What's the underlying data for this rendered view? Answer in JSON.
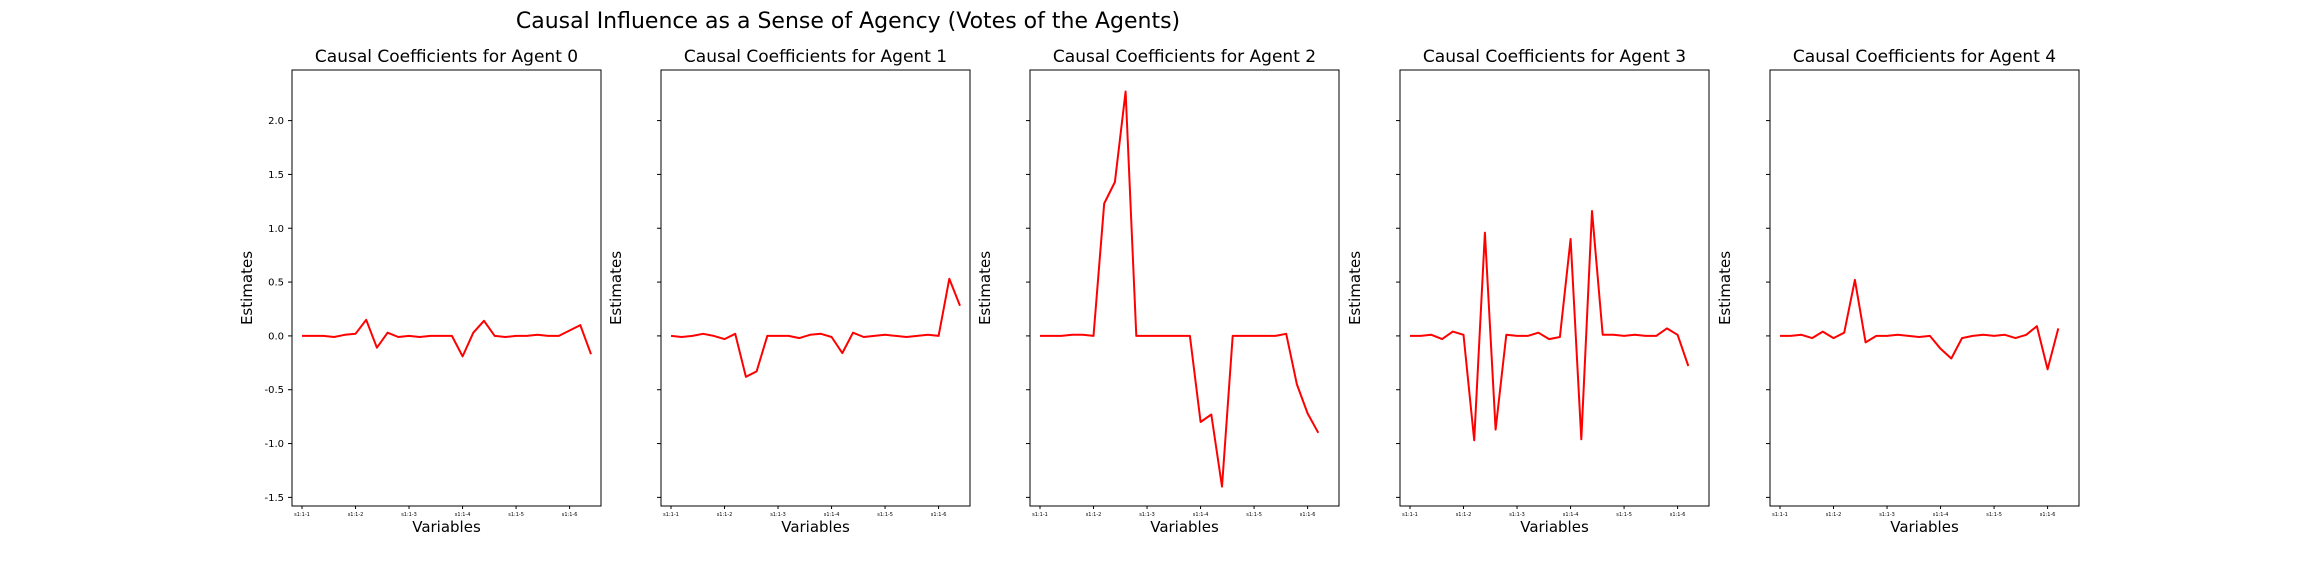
{
  "figure": {
    "title": "Causal Influence as a Sense of Agency (Votes of the Agents)"
  },
  "colors": {
    "line": "#ff0000",
    "axes": "#000000"
  },
  "chart_data": [
    {
      "type": "line",
      "title": "Causal Coefficients for Agent 0",
      "xlabel": "Variables",
      "ylabel": "Estimates",
      "ylim": [
        -1.58,
        2.47
      ],
      "yticks": [
        -1.5,
        -1.0,
        -0.5,
        0.0,
        0.5,
        1.0,
        1.5,
        2.0
      ],
      "ytick_labels": [
        "-1.5",
        "-1.0",
        "-0.5",
        "0.0",
        "0.5",
        "1.0",
        "1.5",
        "2.0"
      ],
      "show_yticklabels": true,
      "xtick_labels": [
        "s1:1-1",
        "s1:1-2",
        "s1:1-3",
        "s1:1-4",
        "s1:1-5",
        "s1:1-6"
      ],
      "xtick_indices": [
        0,
        5,
        10,
        15,
        20,
        25
      ],
      "series": [
        {
          "values": [
            0.0,
            0.0,
            0.0,
            -0.01,
            0.01,
            0.02,
            0.15,
            -0.11,
            0.03,
            -0.01,
            0.0,
            -0.01,
            0.0,
            0.0,
            0.0,
            -0.19,
            0.03,
            0.14,
            0.0,
            -0.01,
            0.0,
            0.0,
            0.01,
            0.0,
            0.0,
            0.05,
            0.1,
            -0.17
          ]
        }
      ]
    },
    {
      "type": "line",
      "title": "Causal Coefficients for Agent 1",
      "xlabel": "Variables",
      "ylabel": "Estimates",
      "ylim": [
        -1.58,
        2.47
      ],
      "yticks": [
        -1.5,
        -1.0,
        -0.5,
        0.0,
        0.5,
        1.0,
        1.5,
        2.0
      ],
      "ytick_labels": [],
      "show_yticklabels": false,
      "xtick_labels": [
        "s1:1-1",
        "s1:1-2",
        "s1:1-3",
        "s1:1-4",
        "s1:1-5",
        "s1:1-6"
      ],
      "xtick_indices": [
        0,
        5,
        10,
        15,
        20,
        25
      ],
      "series": [
        {
          "values": [
            0.0,
            -0.01,
            0.0,
            0.02,
            0.0,
            -0.03,
            0.02,
            -0.38,
            -0.33,
            0.0,
            0.0,
            0.0,
            -0.02,
            0.01,
            0.02,
            -0.01,
            -0.16,
            0.03,
            -0.01,
            0.0,
            0.01,
            0.0,
            -0.01,
            0.0,
            0.01,
            0.0,
            0.53,
            0.28
          ]
        }
      ]
    },
    {
      "type": "line",
      "title": "Causal Coefficients for Agent 2",
      "xlabel": "Variables",
      "ylabel": "Estimates",
      "ylim": [
        -1.58,
        2.47
      ],
      "yticks": [
        -1.5,
        -1.0,
        -0.5,
        0.0,
        0.5,
        1.0,
        1.5,
        2.0
      ],
      "ytick_labels": [],
      "show_yticklabels": false,
      "xtick_labels": [
        "s1:1-1",
        "s1:1-2",
        "s1:1-3",
        "s1:1-4",
        "s1:1-5",
        "s1:1-6"
      ],
      "xtick_indices": [
        0,
        5,
        10,
        15,
        20,
        25
      ],
      "series": [
        {
          "values": [
            0.0,
            0.0,
            0.0,
            0.01,
            0.01,
            0.0,
            1.23,
            1.43,
            2.27,
            0.0,
            0.0,
            0.0,
            0.0,
            0.0,
            0.0,
            -0.8,
            -0.73,
            -1.4,
            0.0,
            0.0,
            0.0,
            0.0,
            0.0,
            0.02,
            -0.45,
            -0.72,
            -0.9
          ]
        }
      ]
    },
    {
      "type": "line",
      "title": "Causal Coefficients for Agent 3",
      "xlabel": "Variables",
      "ylabel": "Estimates",
      "ylim": [
        -1.58,
        2.47
      ],
      "yticks": [
        -1.5,
        -1.0,
        -0.5,
        0.0,
        0.5,
        1.0,
        1.5,
        2.0
      ],
      "ytick_labels": [],
      "show_yticklabels": false,
      "xtick_labels": [
        "s1:1-1",
        "s1:1-2",
        "s1:1-3",
        "s1:1-4",
        "s1:1-5",
        "s1:1-6"
      ],
      "xtick_indices": [
        0,
        5,
        10,
        15,
        20,
        25
      ],
      "series": [
        {
          "values": [
            0.0,
            0.0,
            0.01,
            -0.03,
            0.04,
            0.01,
            -0.97,
            0.96,
            -0.87,
            0.01,
            0.0,
            0.0,
            0.03,
            -0.03,
            -0.01,
            0.9,
            -0.96,
            1.16,
            0.01,
            0.01,
            0.0,
            0.01,
            0.0,
            0.0,
            0.07,
            0.01,
            -0.28
          ]
        }
      ]
    },
    {
      "type": "line",
      "title": "Causal Coefficients for Agent 4",
      "xlabel": "Variables",
      "ylabel": "Estimates",
      "ylim": [
        -1.58,
        2.47
      ],
      "yticks": [
        -1.5,
        -1.0,
        -0.5,
        0.0,
        0.5,
        1.0,
        1.5,
        2.0
      ],
      "ytick_labels": [],
      "show_yticklabels": false,
      "xtick_labels": [
        "s1:1-1",
        "s1:1-2",
        "s1:1-3",
        "s1:1-4",
        "s1:1-5",
        "s1:1-6"
      ],
      "xtick_indices": [
        0,
        5,
        10,
        15,
        20,
        25
      ],
      "series": [
        {
          "values": [
            0.0,
            0.0,
            0.01,
            -0.02,
            0.04,
            -0.02,
            0.03,
            0.52,
            -0.06,
            0.0,
            0.0,
            0.01,
            0.0,
            -0.01,
            0.0,
            -0.12,
            -0.21,
            -0.02,
            0.0,
            0.01,
            0.0,
            0.01,
            -0.02,
            0.01,
            0.09,
            -0.31,
            0.07
          ]
        }
      ]
    }
  ]
}
